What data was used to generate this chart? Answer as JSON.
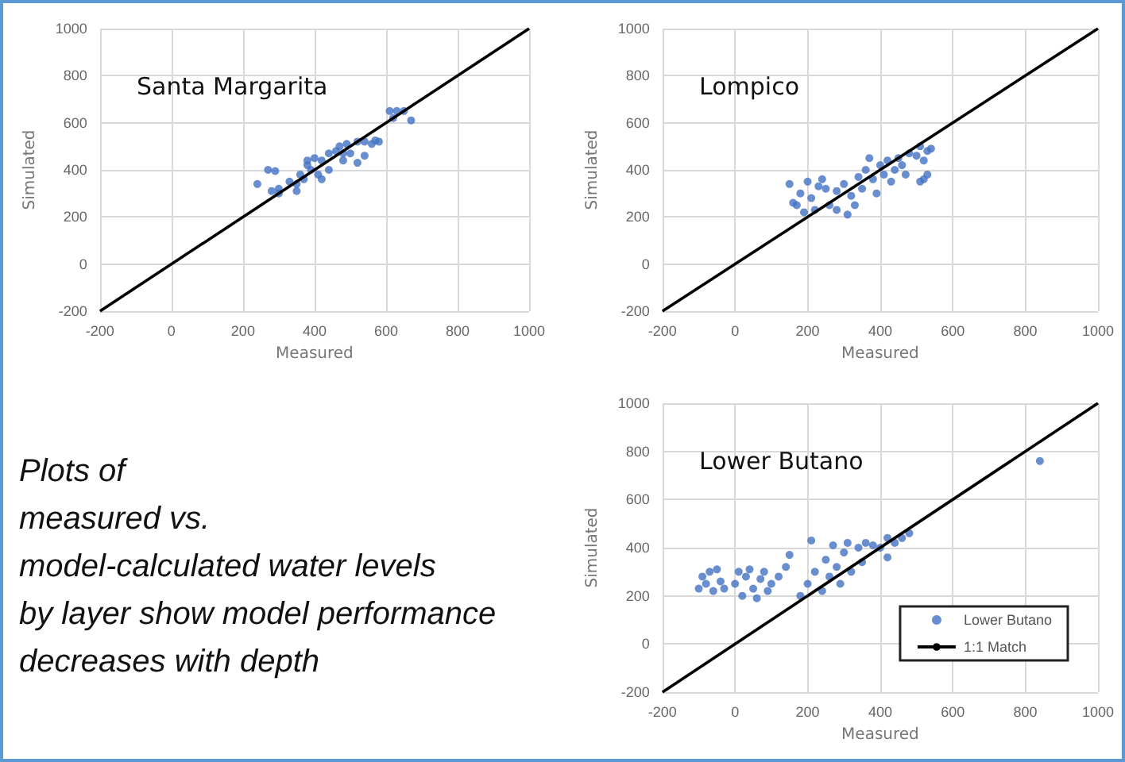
{
  "chart_data": [
    {
      "type": "scatter",
      "title": "Santa Margarita",
      "xlabel": "Measured",
      "ylabel": "Simulated",
      "xlim": [
        -200,
        1000
      ],
      "ylim": [
        -200,
        1000
      ],
      "xticks": [
        -200,
        0,
        200,
        400,
        600,
        800,
        1000
      ],
      "yticks": [
        -200,
        0,
        200,
        400,
        600,
        800,
        1000
      ],
      "grid": true,
      "legend": false,
      "marker": "circle",
      "series": [
        {
          "color": "#4472c4",
          "x": [
            240,
            270,
            290,
            280,
            300,
            330,
            350,
            360,
            370,
            380,
            390,
            400,
            410,
            420,
            440,
            460,
            470,
            480,
            490,
            520,
            540,
            560,
            570,
            580,
            540,
            520,
            480,
            300,
            350,
            420,
            440,
            380,
            500,
            610,
            630,
            650,
            670,
            620
          ],
          "values": [
            340,
            400,
            395,
            310,
            320,
            350,
            340,
            380,
            360,
            420,
            400,
            450,
            380,
            440,
            470,
            480,
            500,
            470,
            510,
            520,
            520,
            510,
            525,
            520,
            460,
            430,
            440,
            300,
            310,
            360,
            400,
            440,
            470,
            650,
            650,
            650,
            610,
            620
          ]
        },
        {
          "type": "line",
          "color": "#000000",
          "marker": "none",
          "x": [
            -200,
            1000
          ],
          "values": [
            -200,
            1000
          ]
        }
      ]
    },
    {
      "type": "scatter",
      "title": "Lompico",
      "xlabel": "Measured",
      "ylabel": "Simulated",
      "xlim": [
        -200,
        1000
      ],
      "ylim": [
        -200,
        1000
      ],
      "xticks": [
        -200,
        0,
        200,
        400,
        600,
        800,
        1000
      ],
      "yticks": [
        -200,
        0,
        200,
        400,
        600,
        800,
        1000
      ],
      "grid": true,
      "legend": false,
      "marker": "circle",
      "series": [
        {
          "color": "#4472c4",
          "x": [
            150,
            160,
            170,
            180,
            190,
            200,
            210,
            220,
            240,
            250,
            260,
            280,
            300,
            310,
            320,
            340,
            350,
            360,
            370,
            380,
            400,
            410,
            420,
            440,
            450,
            460,
            480,
            500,
            510,
            530,
            540,
            520,
            470,
            430,
            390,
            280,
            230,
            330,
            520,
            530,
            510
          ],
          "values": [
            340,
            260,
            250,
            300,
            220,
            350,
            280,
            230,
            360,
            320,
            250,
            230,
            340,
            210,
            290,
            370,
            320,
            400,
            450,
            360,
            420,
            380,
            440,
            400,
            450,
            420,
            470,
            460,
            500,
            480,
            490,
            440,
            380,
            350,
            300,
            310,
            330,
            250,
            360,
            380,
            350
          ]
        },
        {
          "type": "line",
          "color": "#000000",
          "marker": "none",
          "x": [
            -200,
            1000
          ],
          "values": [
            -200,
            1000
          ]
        }
      ]
    },
    {
      "type": "scatter",
      "title": "Lower Butano",
      "xlabel": "Measured",
      "ylabel": "Simulated",
      "xlim": [
        -200,
        1000
      ],
      "ylim": [
        -200,
        1000
      ],
      "xticks": [
        -200,
        0,
        200,
        400,
        600,
        800,
        1000
      ],
      "yticks": [
        -200,
        0,
        200,
        400,
        600,
        800,
        1000
      ],
      "grid": true,
      "legend": "bottom right",
      "marker": "circle",
      "series": [
        {
          "name": "Lower Butano",
          "color": "#4472c4",
          "x": [
            -100,
            -90,
            -80,
            -70,
            -60,
            -50,
            -40,
            -30,
            0,
            10,
            20,
            30,
            40,
            50,
            60,
            70,
            80,
            90,
            100,
            120,
            140,
            150,
            180,
            200,
            210,
            220,
            240,
            250,
            260,
            270,
            280,
            290,
            300,
            310,
            320,
            340,
            350,
            360,
            380,
            400,
            420,
            440,
            460,
            480,
            420,
            840
          ],
          "values": [
            230,
            280,
            250,
            300,
            220,
            310,
            260,
            230,
            250,
            300,
            200,
            280,
            310,
            230,
            190,
            270,
            300,
            220,
            250,
            280,
            320,
            370,
            200,
            250,
            430,
            300,
            220,
            350,
            280,
            410,
            320,
            250,
            380,
            420,
            300,
            400,
            340,
            420,
            410,
            400,
            440,
            420,
            440,
            460,
            360,
            760
          ]
        },
        {
          "name": "1:1 Match",
          "type": "line",
          "color": "#000000",
          "marker": "none",
          "x": [
            -200,
            1000
          ],
          "values": [
            -200,
            1000
          ]
        }
      ]
    },
    {
      "type": "other",
      "annotations": [
        "Plots of",
        "measured vs.",
        "model-calculated water levels",
        "by layer show model performance",
        "decreases with depth"
      ]
    }
  ]
}
